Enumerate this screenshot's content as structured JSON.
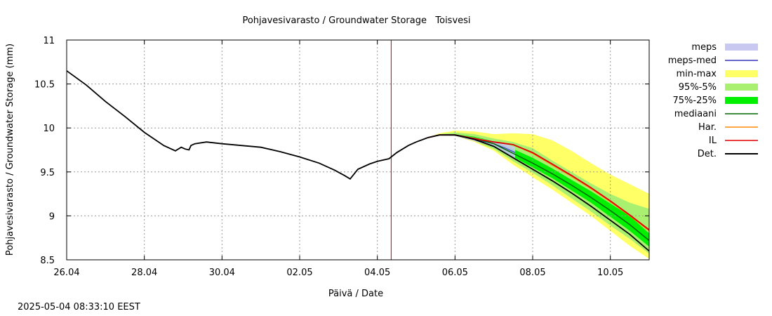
{
  "chart_data": {
    "type": "line",
    "title": "Pohjavesivarasto / Groundwater Storage   Toisvesi",
    "xlabel": "Päivä / Date",
    "ylabel": "Pohjavesivarasto / Groundwater Storage (mm)",
    "xlim": [
      "2025-04-26",
      "2025-05-11"
    ],
    "ylim": [
      8.5,
      11
    ],
    "x_ticks": [
      "26.04",
      "28.04",
      "30.04",
      "02.05",
      "04.05",
      "06.05",
      "08.05",
      "10.05"
    ],
    "y_ticks": [
      "8.5",
      "9",
      "9.5",
      "10",
      "10.5",
      "11"
    ],
    "grid": true,
    "legend_position": "right",
    "forecast_start": "2025-05-04T08:33",
    "colors": {
      "meps": "#c8c8f0",
      "meps-med": "#3333bb",
      "min-max": "#ffff66",
      "95%-5%": "#aaf070",
      "75%-25%": "#00f000",
      "mediaani": "#006600",
      "Har.": "#ff8800",
      "IL": "#dd0000",
      "Det.": "#000000",
      "forecast_line": "#c00000",
      "grid": "#999999"
    },
    "legend": [
      {
        "name": "meps",
        "kind": "band"
      },
      {
        "name": "meps-med",
        "kind": "line"
      },
      {
        "name": "min-max",
        "kind": "band"
      },
      {
        "name": "95%-5%",
        "kind": "band"
      },
      {
        "name": "75%-25%",
        "kind": "band"
      },
      {
        "name": "mediaani",
        "kind": "line"
      },
      {
        "name": "Har.",
        "kind": "line"
      },
      {
        "name": "IL",
        "kind": "line"
      },
      {
        "name": "Det.",
        "kind": "line"
      }
    ],
    "observed": {
      "name": "Det.",
      "x": [
        0,
        0.5,
        1,
        1.5,
        2,
        2.5,
        2.8,
        2.95,
        3.05,
        3.15,
        3.2,
        3.3,
        3.6,
        4.0,
        4.5,
        5.0,
        5.5,
        6.0,
        6.5,
        6.9,
        7.15,
        7.3,
        7.5,
        7.8,
        8.0,
        8.3,
        8.5,
        8.8,
        9.0,
        9.3
      ],
      "y": [
        10.65,
        10.49,
        10.3,
        10.13,
        9.95,
        9.8,
        9.74,
        9.78,
        9.76,
        9.75,
        9.8,
        9.82,
        9.84,
        9.82,
        9.8,
        9.78,
        9.73,
        9.67,
        9.6,
        9.52,
        9.46,
        9.42,
        9.53,
        9.59,
        9.62,
        9.65,
        9.72,
        9.8,
        9.84,
        9.89
      ]
    },
    "forecast_x": [
      9.3,
      9.6,
      10.0,
      10.5,
      11.0,
      11.5,
      12.0,
      12.5,
      13.0,
      13.5,
      14.0,
      14.5,
      15.0
    ],
    "bands": {
      "min-max": {
        "upper": [
          9.89,
          9.94,
          9.97,
          9.96,
          9.93,
          9.94,
          9.93,
          9.86,
          9.74,
          9.6,
          9.47,
          9.36,
          9.25
        ],
        "lower": [
          9.89,
          9.92,
          9.91,
          9.84,
          9.74,
          9.58,
          9.44,
          9.3,
          9.15,
          9.0,
          8.83,
          8.66,
          8.51
        ]
      },
      "95%-5%": {
        "upper": [
          9.89,
          9.93,
          9.95,
          9.93,
          9.88,
          9.84,
          9.77,
          9.63,
          9.5,
          9.37,
          9.25,
          9.15,
          9.08
        ],
        "lower": [
          9.89,
          9.92,
          9.91,
          9.85,
          9.76,
          9.62,
          9.49,
          9.35,
          9.2,
          9.05,
          8.89,
          8.74,
          8.57
        ]
      },
      "75%-25%": {
        "upper": [
          9.89,
          9.92,
          9.93,
          9.9,
          9.85,
          9.76,
          9.66,
          9.54,
          9.41,
          9.28,
          9.14,
          9.0,
          8.8
        ],
        "lower": [
          9.89,
          9.92,
          9.92,
          9.87,
          9.79,
          9.67,
          9.55,
          9.43,
          9.29,
          9.15,
          8.99,
          8.83,
          8.65
        ]
      },
      "meps": {
        "x": [
          9.3,
          9.6,
          10.0,
          10.5,
          11.0,
          11.3,
          11.55
        ],
        "upper": [
          9.89,
          9.93,
          9.93,
          9.89,
          9.85,
          9.82,
          9.78
        ],
        "lower": [
          9.89,
          9.92,
          9.91,
          9.85,
          9.79,
          9.72,
          9.65
        ]
      }
    },
    "lines": {
      "mediaani": [
        9.89,
        9.92,
        9.92,
        9.88,
        9.82,
        9.71,
        9.6,
        9.48,
        9.35,
        9.21,
        9.06,
        8.9,
        8.72
      ],
      "Har.": [
        9.89,
        9.92,
        9.92,
        9.88,
        9.84,
        9.81,
        9.71,
        9.58,
        9.45,
        9.31,
        9.16,
        9.0,
        8.83
      ],
      "IL": [
        9.89,
        9.92,
        9.92,
        9.88,
        9.84,
        9.81,
        9.72,
        9.59,
        9.46,
        9.32,
        9.17,
        9.01,
        8.84
      ],
      "Det.": [
        9.89,
        9.92,
        9.92,
        9.87,
        9.79,
        9.66,
        9.53,
        9.4,
        9.26,
        9.11,
        8.95,
        8.79,
        8.6
      ]
    },
    "meps-med": {
      "x": [
        9.3,
        9.6,
        10.0,
        10.5,
        11.0,
        11.3,
        11.55
      ],
      "y": [
        9.89,
        9.92,
        9.92,
        9.87,
        9.82,
        9.77,
        9.72
      ]
    }
  },
  "footer": {
    "timestamp": "2025-05-04 08:33:10 EEST"
  }
}
